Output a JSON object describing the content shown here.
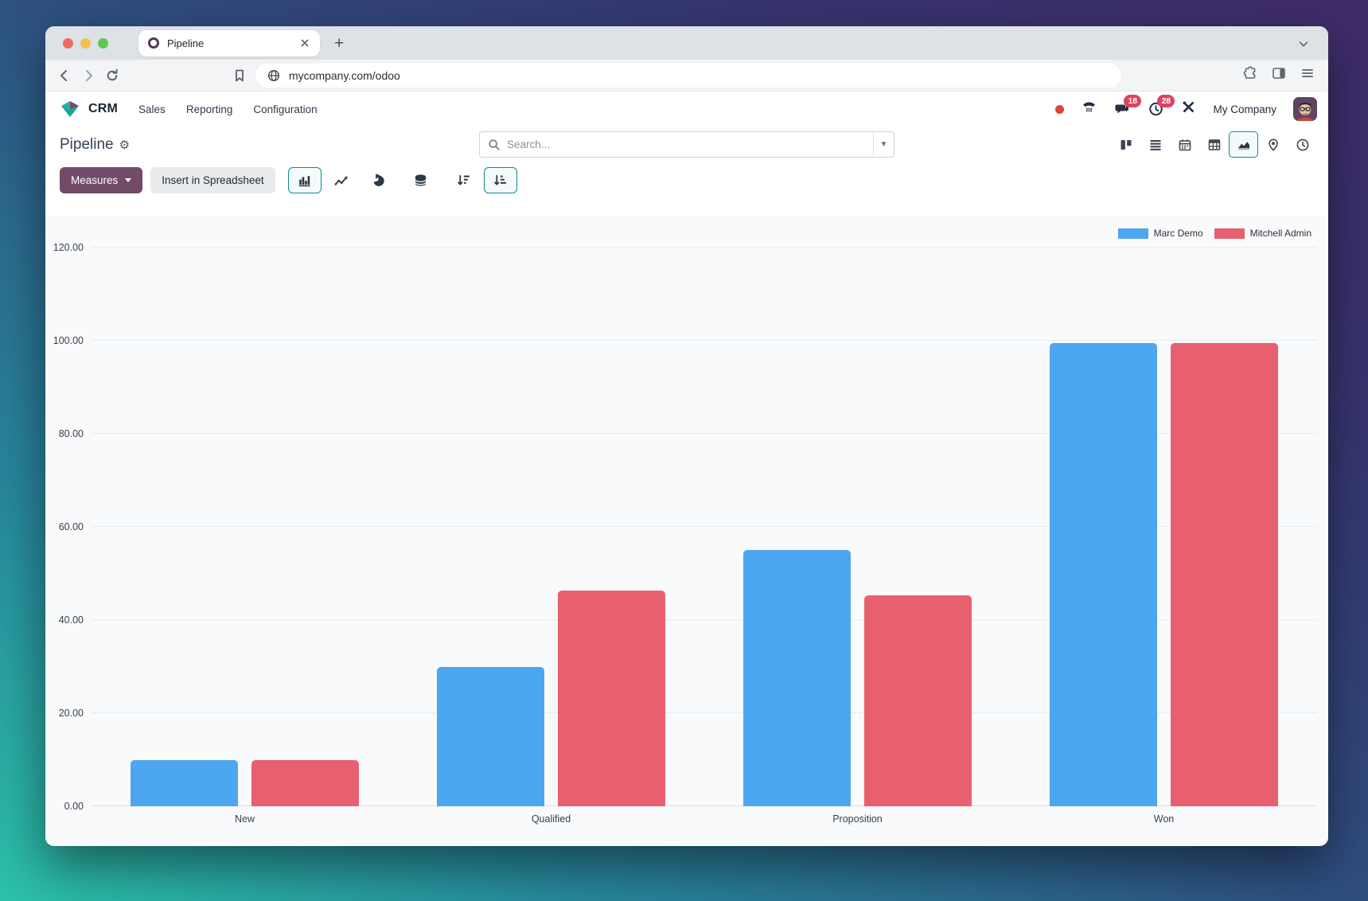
{
  "browser": {
    "tab_title": "Pipeline",
    "url": "mycompany.com/odoo"
  },
  "navbar": {
    "app_name": "CRM",
    "menus": [
      "Sales",
      "Reporting",
      "Configuration"
    ],
    "message_badge": "18",
    "activity_badge": "28",
    "company_name": "My Company"
  },
  "control_panel": {
    "page_title": "Pipeline",
    "search_placeholder": "Search..."
  },
  "toolbar": {
    "measures_label": "Measures",
    "insert_spreadsheet_label": "Insert in Spreadsheet"
  },
  "chart_data": {
    "type": "bar",
    "title": "",
    "categories": [
      "New",
      "Qualified",
      "Proposition",
      "Won"
    ],
    "series": [
      {
        "name": "Marc Demo",
        "color": "#4da6f0",
        "values": [
          10,
          30,
          55,
          99.5
        ]
      },
      {
        "name": "Mitchell Admin",
        "color": "#e8606f",
        "values": [
          10,
          46.25,
          45.25,
          99.5
        ]
      }
    ],
    "xlabel": "",
    "ylabel": "",
    "ylim": [
      0,
      120
    ],
    "yticks": [
      0,
      20,
      40,
      60,
      80,
      100,
      120
    ],
    "ytick_labels": [
      "0.00",
      "20.00",
      "40.00",
      "60.00",
      "80.00",
      "100.00",
      "120.00"
    ],
    "legend_position": "top-right",
    "grid": true
  },
  "colors": {
    "measures_button": "#714B67",
    "active_control_border": "#0e8c8f",
    "badge": "#e0425f",
    "presence_dot": "#df4339"
  }
}
